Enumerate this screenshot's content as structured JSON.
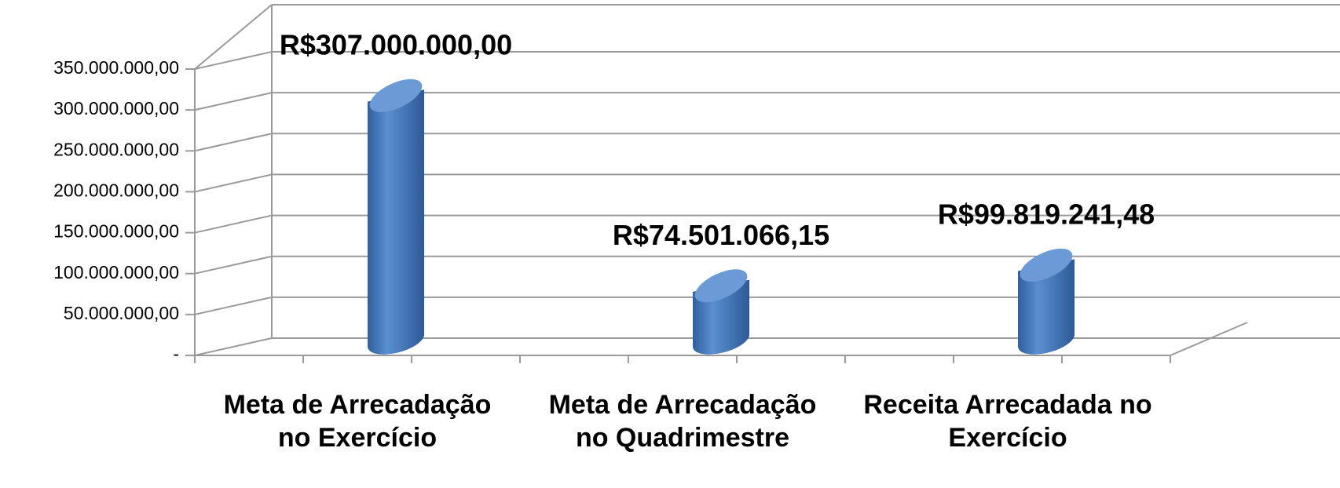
{
  "chart_data": {
    "type": "bar3d",
    "categories": [
      "Meta de Arrecadação no Exercício",
      "Meta de Arrecadação no Quadrimestre",
      "Receita Arrecadada no Exercício"
    ],
    "values": [
      307000000,
      74501066.15,
      99819241.48
    ],
    "value_labels": [
      "R$307.000.000,00",
      "R$74.501.066,15",
      "R$99.819.241,48"
    ],
    "color": "#4a7ebf",
    "ylim": [
      0,
      350000000
    ],
    "yticks": [
      {
        "value": 0,
        "label": "-"
      },
      {
        "value": 50000000,
        "label": "50.000.000,00"
      },
      {
        "value": 100000000,
        "label": "100.000.000,00"
      },
      {
        "value": 150000000,
        "label": "150.000.000,00"
      },
      {
        "value": 200000000,
        "label": "200.000.000,00"
      },
      {
        "value": 250000000,
        "label": "250.000.000,00"
      },
      {
        "value": 300000000,
        "label": "300.000.000,00"
      },
      {
        "value": 350000000,
        "label": "350.000.000,00"
      }
    ],
    "grid": true
  }
}
